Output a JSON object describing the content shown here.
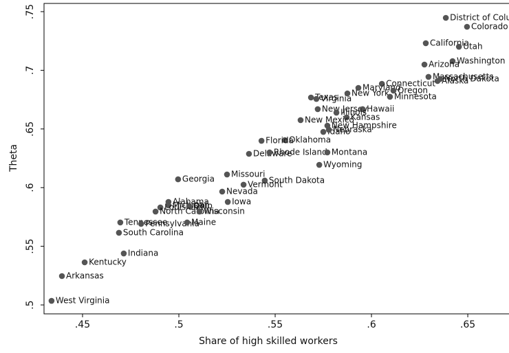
{
  "chart_data": {
    "type": "scatter",
    "x_label": "Share of high skilled workers",
    "y_label": "Theta",
    "color": "#555555",
    "labels": [
      "District of Columbia",
      "Colorado",
      "California",
      "Utah",
      "Washington",
      "Arizona",
      "Massachusetts",
      "North Dakota",
      "Alaska",
      "Connecticut",
      "Maryland",
      "New York",
      "Oregon",
      "Minnesota",
      "Texas",
      "Virginia",
      "New Jersey",
      "Hawaii",
      "Illinois",
      "Kansas",
      "New Mexico",
      "New Hampshire",
      "Idaho",
      "Nebraska",
      "Oklahoma",
      "Florida",
      "Delaware",
      "Rhode Island",
      "Montana",
      "Wyoming",
      "Missouri",
      "Georgia",
      "South Dakota",
      "Vermont",
      "Nevada",
      "Iowa",
      "Alabama",
      "Michigan",
      "Louisiana",
      "Ohio",
      "North Carolina",
      "Wisconsin",
      "Tennessee",
      "Pennsylvania",
      "Maine",
      "South Carolina",
      "Indiana",
      "Kentucky",
      "Arkansas",
      "West Virginia"
    ],
    "x": [
      0.6386,
      0.6496,
      0.6282,
      0.6454,
      0.6421,
      0.6275,
      0.6296,
      0.6357,
      0.6343,
      0.6054,
      0.5932,
      0.5875,
      0.6114,
      0.6096,
      0.5686,
      0.5714,
      0.5721,
      0.5954,
      0.5818,
      0.5871,
      0.5632,
      0.5771,
      0.575,
      0.5779,
      0.555,
      0.5429,
      0.5364,
      0.5471,
      0.5771,
      0.5729,
      0.525,
      0.4996,
      0.5446,
      0.5336,
      0.5225,
      0.5254,
      0.4946,
      0.4946,
      0.4904,
      0.5054,
      0.4879,
      0.5107,
      0.4696,
      0.4804,
      0.5043,
      0.4689,
      0.4714,
      0.4511,
      0.4393,
      0.4339
    ],
    "y": [
      0.7447,
      0.7371,
      0.7231,
      0.7201,
      0.7078,
      0.7049,
      0.6944,
      0.6926,
      0.6909,
      0.6885,
      0.685,
      0.6803,
      0.6827,
      0.6774,
      0.6768,
      0.6756,
      0.6669,
      0.6669,
      0.6639,
      0.6598,
      0.6575,
      0.6528,
      0.6475,
      0.6493,
      0.6405,
      0.6399,
      0.6288,
      0.63,
      0.63,
      0.6194,
      0.6112,
      0.6071,
      0.606,
      0.6025,
      0.5966,
      0.5878,
      0.5878,
      0.5849,
      0.5831,
      0.5843,
      0.5796,
      0.5796,
      0.5703,
      0.5691,
      0.5703,
      0.5615,
      0.5439,
      0.5363,
      0.5246,
      0.5035
    ],
    "xlim": [
      0.43,
      0.6714
    ],
    "ylim": [
      0.4924,
      0.757
    ],
    "xticks": [
      {
        "value": 0.45,
        "label": ".45"
      },
      {
        "value": 0.5,
        "label": ".5"
      },
      {
        "value": 0.55,
        "label": ".55"
      },
      {
        "value": 0.6,
        "label": ".6"
      },
      {
        "value": 0.65,
        "label": ".65"
      }
    ],
    "yticks": [
      {
        "value": 0.5,
        "label": ".5"
      },
      {
        "value": 0.55,
        "label": ".55"
      },
      {
        "value": 0.6,
        "label": ".6"
      },
      {
        "value": 0.65,
        "label": ".65"
      },
      {
        "value": 0.7,
        "label": ".7"
      },
      {
        "value": 0.75,
        "label": ".75"
      }
    ],
    "grid": false
  }
}
